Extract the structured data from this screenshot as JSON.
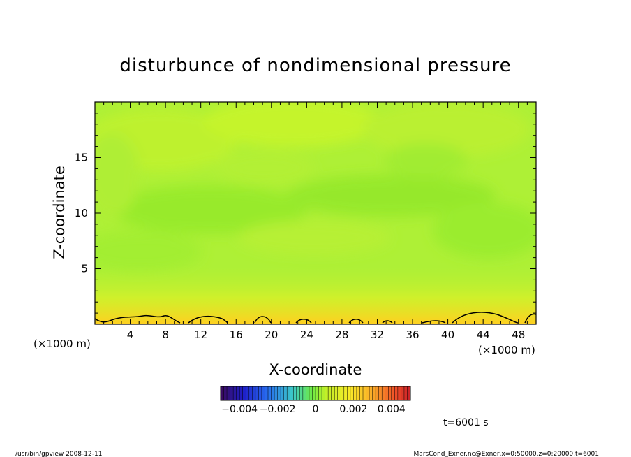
{
  "chart_data": {
    "type": "heatmap",
    "title": "disturbunce of nondimensional pressure",
    "xlabel": "X-coordinate",
    "ylabel": "Z-coordinate",
    "x_unit": "(×1000 m)",
    "y_unit": "(×1000 m)",
    "xlim": [
      0,
      50
    ],
    "ylim": [
      0,
      20
    ],
    "x_ticks": [
      4,
      8,
      12,
      16,
      20,
      24,
      28,
      32,
      36,
      40,
      44,
      48
    ],
    "y_ticks": [
      5,
      10,
      15
    ],
    "colorbar": {
      "range": [
        -0.005,
        0.005
      ],
      "tick_values": [
        -0.004,
        -0.002,
        0,
        0.002,
        0.004
      ],
      "tick_labels": [
        "−0.004",
        "−0.002",
        "0",
        "0.002",
        "0.004"
      ]
    },
    "field_summary": "near-zero values (about 0 to 0.001) across the domain; slightly higher (about 0.002) near z=0",
    "contour_level_near_surface": 0.002,
    "time_label": "t=6001 s"
  },
  "footer": {
    "left": "/usr/bin/gpview  2008-12-11",
    "right": "MarsCond_Exner.nc@Exner,x=0:50000,z=0:20000,t=6001"
  },
  "colors": {
    "field_main": "#a8f03a",
    "field_light": "#c6f52a",
    "field_dark": "#92ea2c",
    "field_surface": "#ffd020",
    "contour": "#000000"
  }
}
